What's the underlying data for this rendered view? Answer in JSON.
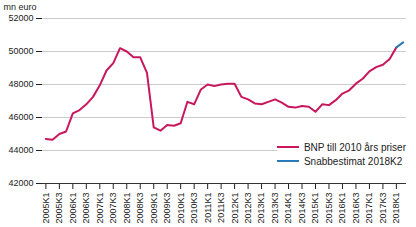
{
  "chart_data": {
    "type": "line",
    "y_label": "mn euro",
    "categories": [
      "2005K1",
      null,
      "2005K3",
      null,
      "2006K1",
      null,
      "2006K3",
      null,
      "2007K1",
      null,
      "2007K3",
      null,
      "2008K1",
      null,
      "2008K3",
      null,
      "2009K1",
      null,
      "2009K3",
      null,
      "2010K1",
      null,
      "2010K3",
      null,
      "2011K1",
      null,
      "2011K3",
      null,
      "2012K1",
      null,
      "2012K3",
      null,
      "2013K1",
      null,
      "2013K3",
      null,
      "2014K1",
      null,
      "2014K3",
      null,
      "2015K1",
      null,
      "2015K3",
      null,
      "2016K1",
      null,
      "2016K3",
      null,
      "2017K1",
      null,
      "2017K3",
      null,
      "2018K1",
      null
    ],
    "series": [
      {
        "name": "BNP till 2010 års priser",
        "color": "#c8175d",
        "values": [
          44700,
          44650,
          45000,
          45150,
          46250,
          46450,
          46800,
          47250,
          47950,
          48850,
          49300,
          50200,
          50000,
          49650,
          49650,
          48700,
          45400,
          45200,
          45550,
          45500,
          45650,
          46950,
          46800,
          47700,
          48000,
          47900,
          48000,
          48050,
          48050,
          47250,
          47100,
          46850,
          46800,
          46950,
          47100,
          46900,
          46650,
          46600,
          46700,
          46650,
          46350,
          46800,
          46750,
          47050,
          47450,
          47650,
          48050,
          48350,
          48800,
          49050,
          49200,
          49550,
          50250,
          null
        ]
      },
      {
        "name": "Snabbestimat 2018K2",
        "color": "#2a7ab8",
        "values": [
          null,
          null,
          null,
          null,
          null,
          null,
          null,
          null,
          null,
          null,
          null,
          null,
          null,
          null,
          null,
          null,
          null,
          null,
          null,
          null,
          null,
          null,
          null,
          null,
          null,
          null,
          null,
          null,
          null,
          null,
          null,
          null,
          null,
          null,
          null,
          null,
          null,
          null,
          null,
          null,
          null,
          null,
          null,
          null,
          null,
          null,
          null,
          null,
          null,
          null,
          null,
          null,
          50250,
          50550
        ]
      }
    ],
    "ylim": [
      42000,
      52000
    ],
    "yticks": [
      42000,
      44000,
      46000,
      48000,
      50000,
      52000
    ],
    "grid": true,
    "legend": "lower right"
  }
}
